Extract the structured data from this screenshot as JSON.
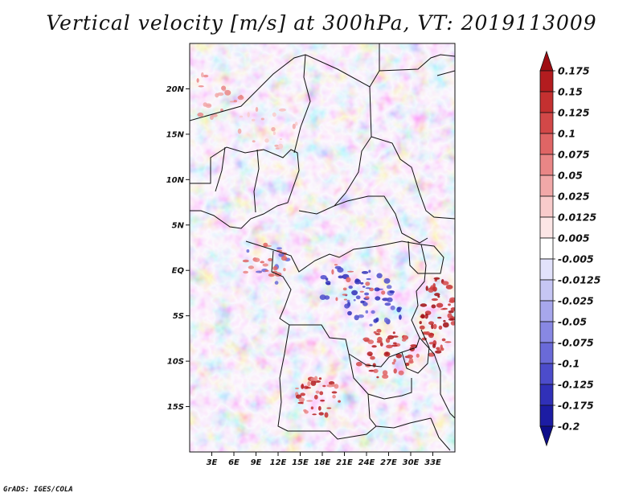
{
  "title": "Vertical velocity [m/s] at 300hPa, VT: 2019113009",
  "credit": "GrADS: IGES/COLA",
  "lat_labels": [
    "20N",
    "15N",
    "10N",
    "5N",
    "EQ",
    "5S",
    "10S",
    "15S"
  ],
  "lat_values": [
    20,
    15,
    10,
    5,
    0,
    -5,
    -10,
    -15
  ],
  "lon_labels": [
    "3E",
    "6E",
    "9E",
    "12E",
    "15E",
    "18E",
    "21E",
    "24E",
    "27E",
    "30E",
    "33E"
  ],
  "lon_values": [
    3,
    6,
    9,
    12,
    15,
    18,
    21,
    24,
    27,
    30,
    33
  ],
  "colorbar": {
    "labels": [
      "0.175",
      "0.15",
      "0.125",
      "0.1",
      "0.075",
      "0.05",
      "0.025",
      "0.0125",
      "0.005",
      "-0.005",
      "-0.0125",
      "-0.025",
      "-0.05",
      "-0.075",
      "-0.1",
      "-0.125",
      "-0.175",
      "-0.2"
    ],
    "colors": [
      "#9e0d12",
      "#b31c1f",
      "#c43030",
      "#d24848",
      "#df6565",
      "#e98686",
      "#f1a8a8",
      "#f8cbcb",
      "#fce6e6",
      "#ffffff",
      "#e2e2fb",
      "#c6c6f4",
      "#a7a7ec",
      "#8888e3",
      "#6a6ad8",
      "#4c4ccb",
      "#3030b8",
      "#1c1ca3",
      "#0d0d8a"
    ]
  }
}
